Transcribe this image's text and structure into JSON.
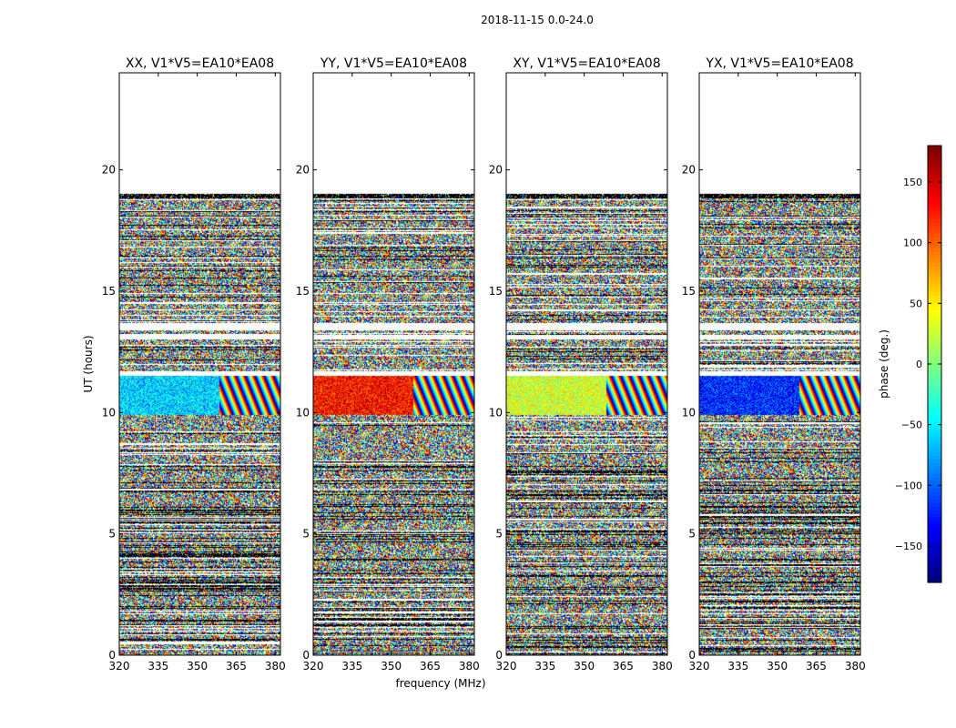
{
  "figure": {
    "title": "2018-11-15 0.0-24.0"
  },
  "chart_data": {
    "type": "heatmap",
    "title": "2018-11-15 0.0-24.0",
    "xlabel": "frequency (MHz)",
    "ylabel": "UT (hours)",
    "xlim": [
      320,
      382
    ],
    "ylim": [
      0,
      24
    ],
    "x_ticks": [
      320,
      335,
      350,
      365,
      380
    ],
    "y_ticks": [
      0,
      5,
      10,
      15,
      20
    ],
    "panels": [
      {
        "title": "XX, V1*V5=EA10*EA08",
        "mode": "xx"
      },
      {
        "title": "YY, V1*V5=EA10*EA08",
        "mode": "yy"
      },
      {
        "title": "XY, V1*V5=EA10*EA08",
        "mode": "xy"
      },
      {
        "title": "YX, V1*V5=EA10*EA08",
        "mode": "yx"
      }
    ],
    "data_extent_hours": [
      0,
      19
    ],
    "colorbar": {
      "label": "phase (deg.)",
      "range": [
        -180,
        180
      ],
      "ticks": [
        -150,
        -100,
        -50,
        0,
        50,
        100,
        150
      ],
      "tick_labels": [
        "−150",
        "−100",
        "−50",
        "0",
        "50",
        "100",
        "150"
      ],
      "colormap": "jet"
    },
    "grid": false
  }
}
